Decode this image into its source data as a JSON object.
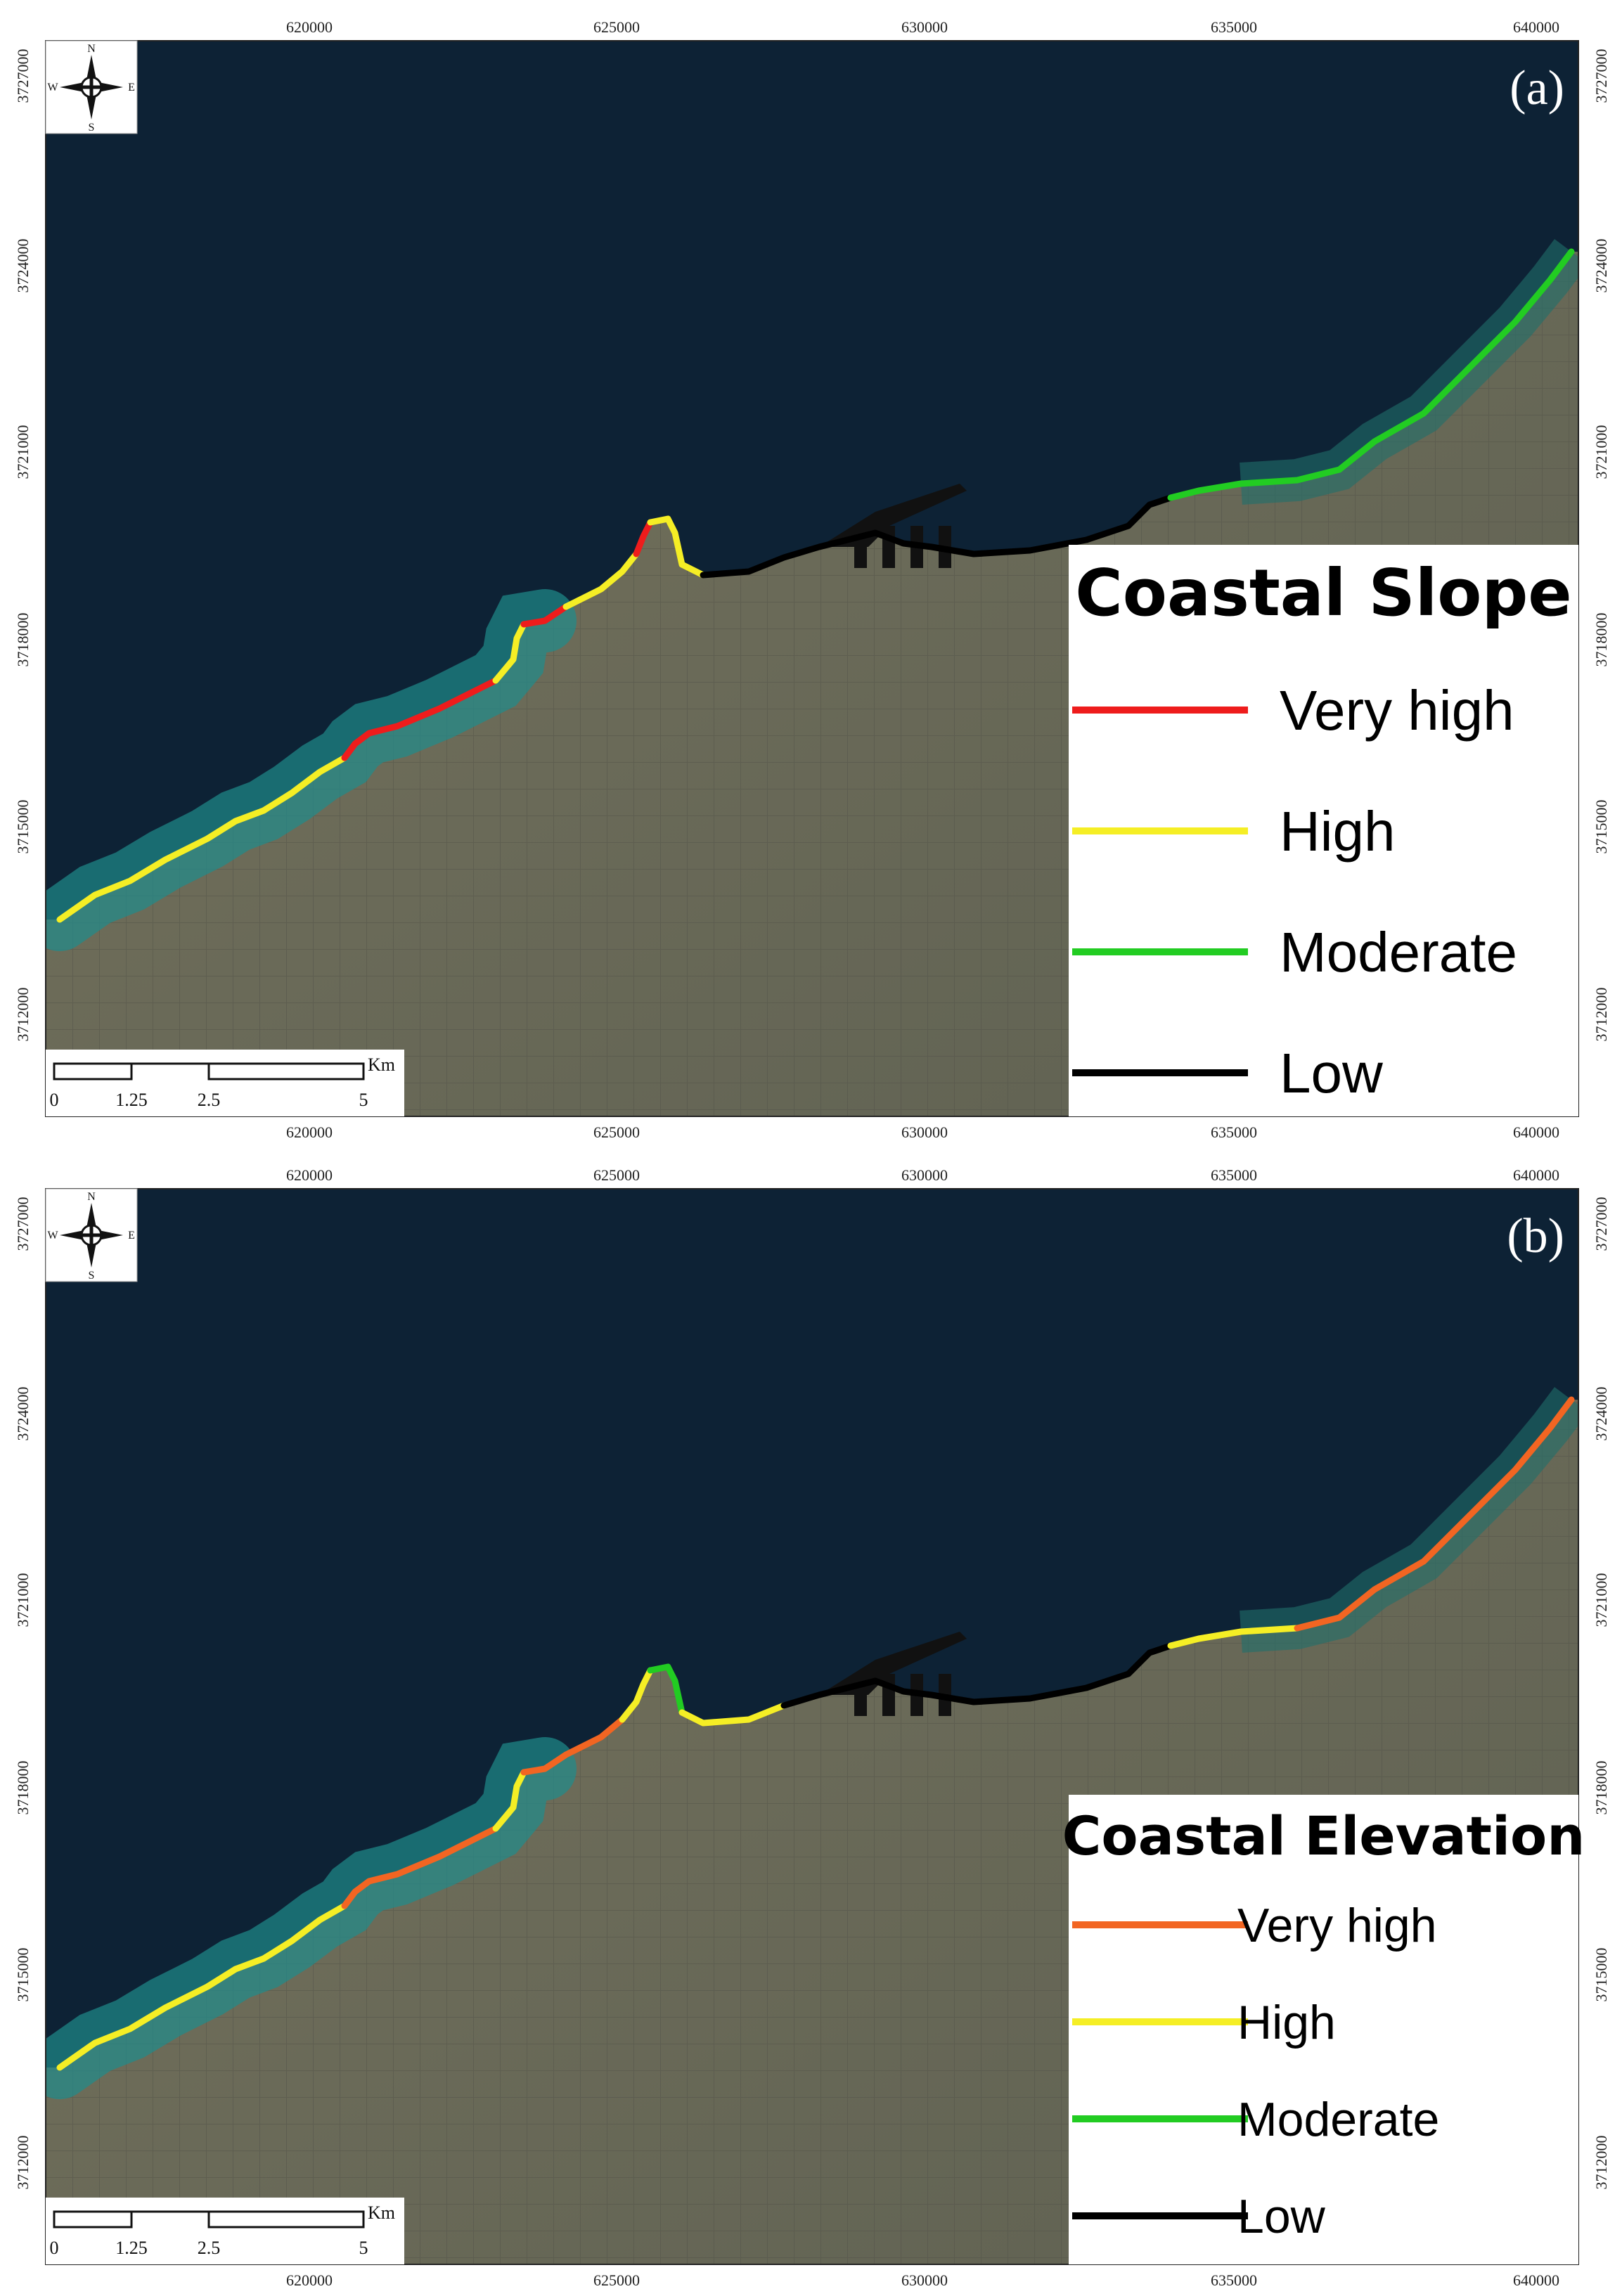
{
  "panels": [
    {
      "id": "a",
      "label": "(a)",
      "legend": {
        "title": "Coastal Slope",
        "items": [
          {
            "label": "Very high",
            "color": "#ee1c1c"
          },
          {
            "label": "High",
            "color": "#f5ee25"
          },
          {
            "label": "Moderate",
            "color": "#22cc22"
          },
          {
            "label": "Low",
            "color": "#000000"
          }
        ]
      }
    },
    {
      "id": "b",
      "label": "(b)",
      "legend": {
        "title": "Coastal Elevation",
        "items": [
          {
            "label": "Very high",
            "color": "#f26522"
          },
          {
            "label": "High",
            "color": "#f5ee25"
          },
          {
            "label": "Moderate",
            "color": "#22cc22"
          },
          {
            "label": "Low",
            "color": "#000000"
          }
        ]
      }
    }
  ],
  "x_ticks": [
    "620000",
    "625000",
    "630000",
    "635000",
    "640000"
  ],
  "y_ticks": [
    "3727000",
    "3724000",
    "3721000",
    "3718000",
    "3715000",
    "3712000"
  ],
  "compass": {
    "n": "N",
    "s": "S",
    "e": "E",
    "w": "W"
  },
  "scalebar": {
    "labels": [
      "0",
      "1.25",
      "2.5",
      "5"
    ],
    "unit": "Km"
  },
  "colors": {
    "sea": "#0d2235",
    "shallow": "#1f8c8c",
    "land": "#6b6a55"
  }
}
